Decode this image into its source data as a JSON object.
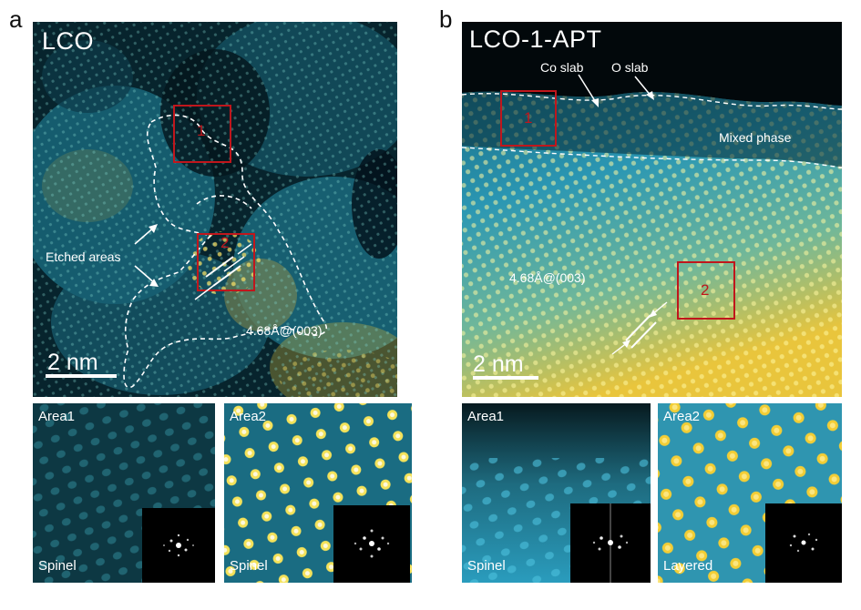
{
  "panel_a": {
    "letter": "a",
    "title": "LCO",
    "scale": "2 nm",
    "annotations": {
      "etched": "Etched areas",
      "spacing": "4.68Å@(003)"
    },
    "regions": [
      "1",
      "2"
    ],
    "insets": [
      {
        "label": "Area1",
        "phase": "Spinel"
      },
      {
        "label": "Area2",
        "phase": "Spinel"
      }
    ]
  },
  "panel_b": {
    "letter": "b",
    "title": "LCO-1-APT",
    "scale": "2 nm",
    "annotations": {
      "co_slab": "Co slab",
      "o_slab": "O slab",
      "mixed": "Mixed phase",
      "spacing": "4.68Å@(003)"
    },
    "regions": [
      "1",
      "2"
    ],
    "insets": [
      {
        "label": "Area1",
        "phase": "Spinel"
      },
      {
        "label": "Area2",
        "phase": "Layered"
      }
    ]
  },
  "colors": {
    "dark": "#04161c",
    "teal": "#1d7f97",
    "cyan": "#2fa3c1",
    "yellow": "#e6c637",
    "roi": "#c0161c"
  }
}
